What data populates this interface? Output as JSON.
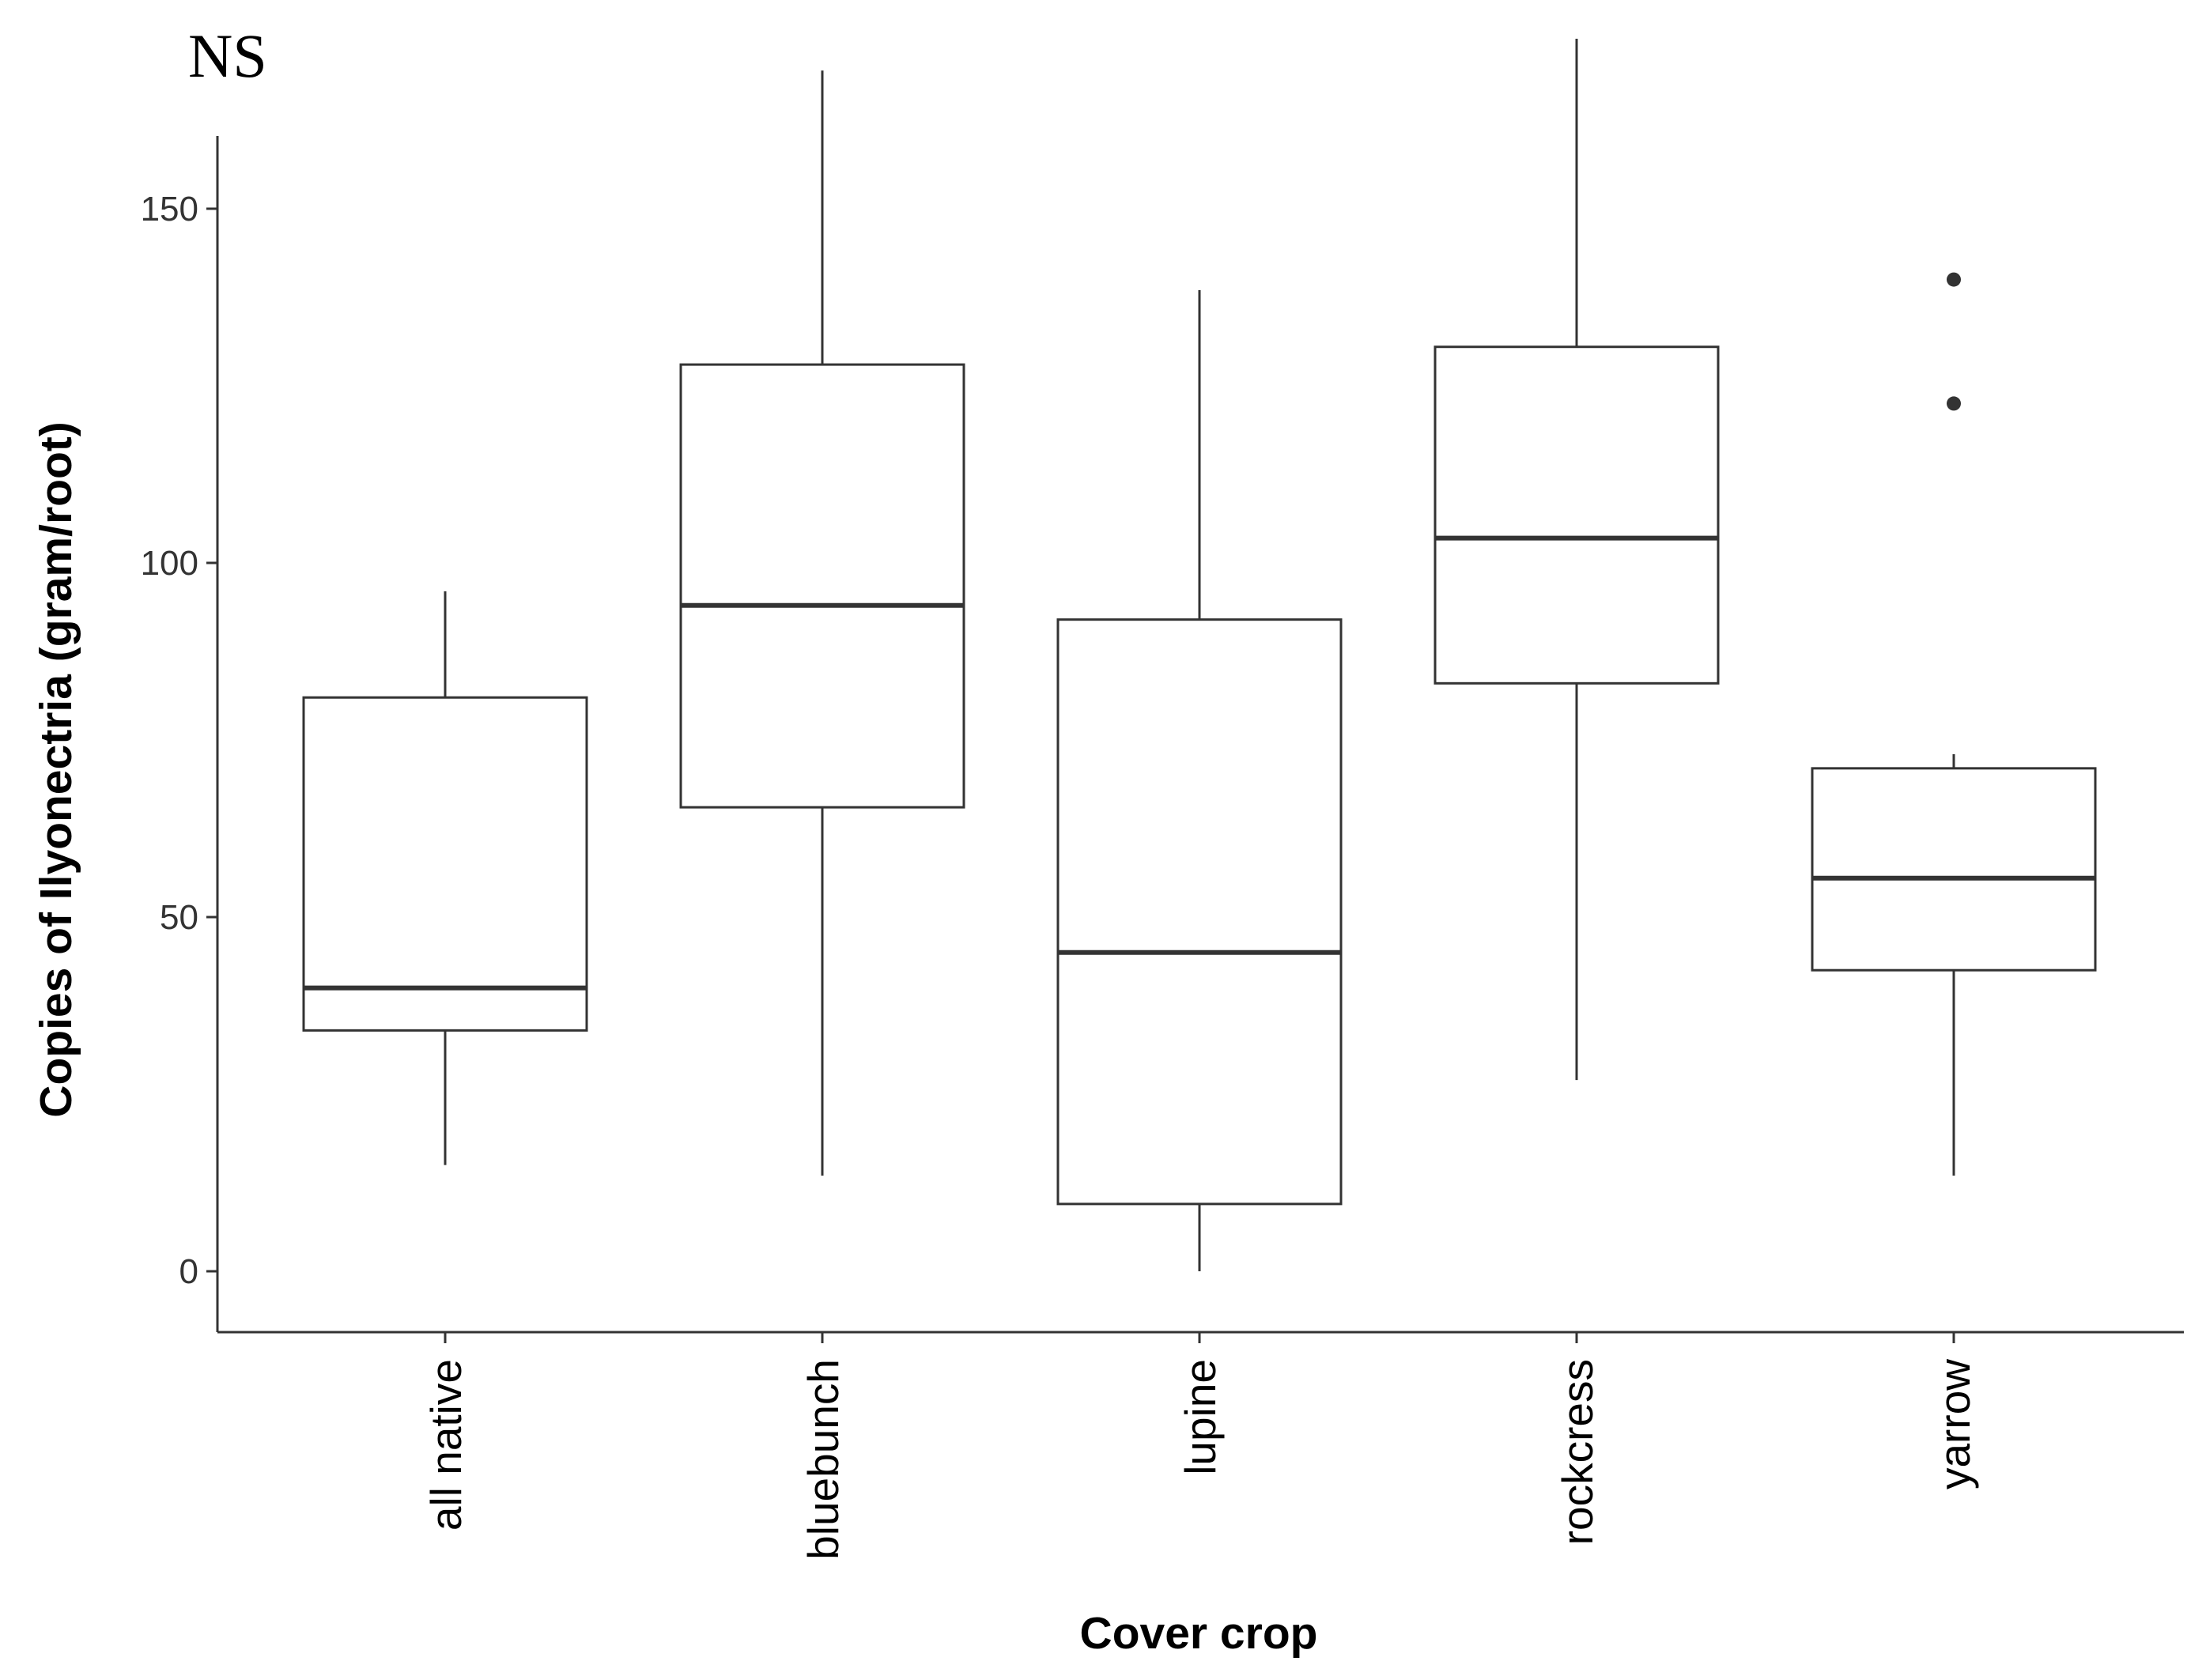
{
  "annotation": "NS",
  "chart_data": {
    "type": "box",
    "xlabel": "Cover crop",
    "ylabel": "Copies of Ilyonectria (gram/root)",
    "ylim": [
      -8.5,
      160.5
    ],
    "yticks": [
      0,
      50,
      100,
      150
    ],
    "grid": false,
    "colors": {
      "box_fill": "#ffffff",
      "stroke": "#333333",
      "axis": "#333333",
      "outlier": "#333333"
    },
    "categories": [
      "all native",
      "bluebunch",
      "lupine",
      "rockcress",
      "yarrow"
    ],
    "boxes": [
      {
        "category": "all native",
        "whisker_low": 15,
        "q1": 34,
        "median": 40,
        "q3": 81,
        "whisker_high": 96,
        "outliers": []
      },
      {
        "category": "bluebunch",
        "whisker_low": 13.5,
        "q1": 65.5,
        "median": 94,
        "q3": 128,
        "whisker_high": 169.5,
        "outliers": []
      },
      {
        "category": "lupine",
        "whisker_low": 0,
        "q1": 9.5,
        "median": 45,
        "q3": 92,
        "whisker_high": 138.5,
        "outliers": []
      },
      {
        "category": "rockcress",
        "whisker_low": 27,
        "q1": 83,
        "median": 103.5,
        "q3": 130.5,
        "whisker_high": 174,
        "outliers": []
      },
      {
        "category": "yarrow",
        "whisker_low": 13.5,
        "q1": 42.5,
        "median": 55.5,
        "q3": 71,
        "whisker_high": 73,
        "outliers": [
          122.5,
          140
        ]
      }
    ]
  }
}
